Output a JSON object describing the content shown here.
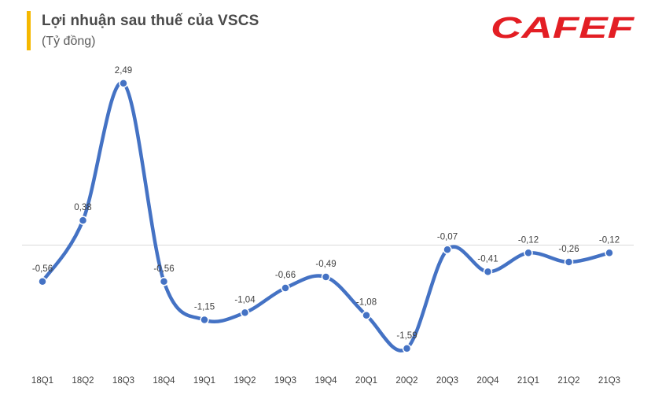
{
  "header": {
    "title": "Lợi nhuận sau thuế của VSCS",
    "subtitle": "(Tỷ đồng)",
    "accent_color": "#F5B800"
  },
  "logo": {
    "text": "CAFEF",
    "color": "#E31E24"
  },
  "chart_data": {
    "type": "line",
    "smooth": true,
    "title": "Lợi nhuận sau thuế của VSCS",
    "unit_label": "(Tỷ đồng)",
    "categories": [
      "18Q1",
      "18Q2",
      "18Q3",
      "18Q4",
      "19Q1",
      "19Q2",
      "19Q3",
      "19Q4",
      "20Q1",
      "20Q2",
      "20Q3",
      "20Q4",
      "21Q1",
      "21Q2",
      "21Q3"
    ],
    "series": [
      {
        "color": "#4472C4",
        "values": [
          -0.56,
          0.38,
          2.49,
          -0.56,
          -1.15,
          -1.04,
          -0.66,
          -0.49,
          -1.08,
          -1.59,
          -0.07,
          -0.41,
          -0.12,
          -0.26,
          -0.12
        ],
        "labels": [
          "-0,56",
          "0,38",
          "2,49",
          "-0,56",
          "-1,15",
          "-1,04",
          "-0,66",
          "-0,49",
          "-1,08",
          "-1,59",
          "-0,07",
          "-0,41",
          "-0,12",
          "-0,26",
          "-0,12"
        ]
      }
    ],
    "zero_line": true,
    "grid": false,
    "legend": "none"
  }
}
